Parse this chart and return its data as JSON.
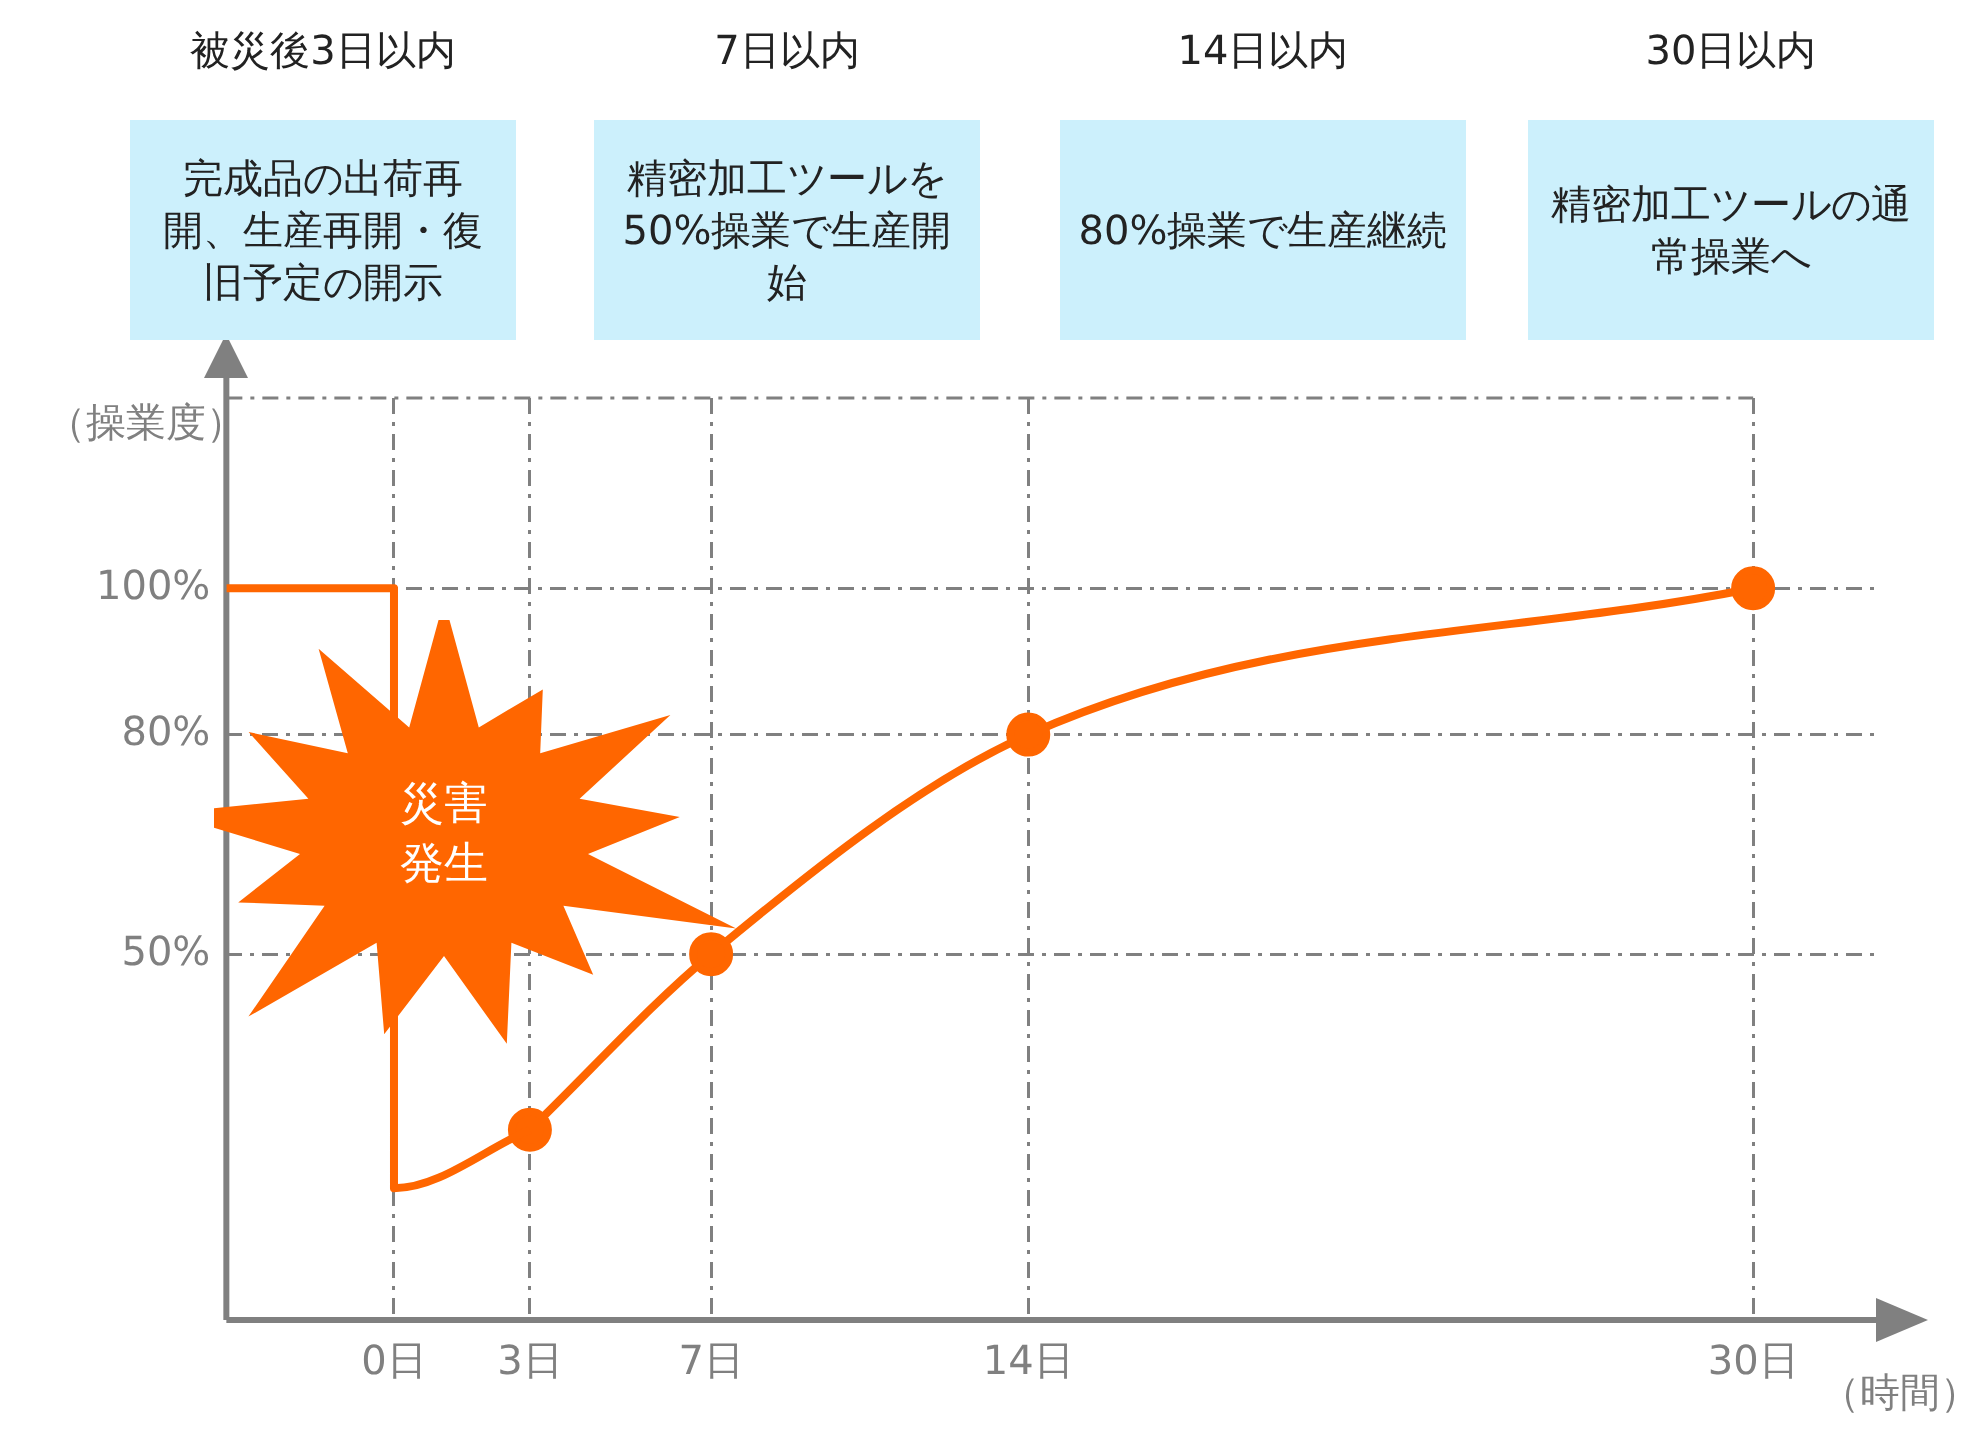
{
  "chart_data": {
    "type": "line",
    "xlabel": "（時間）",
    "ylabel": "（操業度）",
    "annotations": [
      "被災後3日以内",
      "7日以内",
      "14日以内",
      "30日以内",
      "完成品の出荷再開、生産再開・復旧予定の開示",
      "精密加工ツールを50%操業で生産開始",
      "80%操業で生産継続",
      "精密加工ツールの通常操業へ",
      "災害発生"
    ],
    "series": [
      {
        "color": "#ff6600",
        "marker": "none",
        "x": [
          -3.7,
          0,
          0,
          3
        ],
        "values": [
          100,
          100,
          18,
          26
        ]
      },
      {
        "color": "#ff6600",
        "marker": "circle",
        "x": [
          3,
          7,
          14,
          30
        ],
        "values": [
          26,
          50,
          80,
          100
        ]
      }
    ],
    "xlim": [
      -3.7,
      32.8
    ],
    "ylim": [
      0,
      126
    ],
    "xticks": [
      {
        "value": 0,
        "label": "0日"
      },
      {
        "value": 3,
        "label": "3日"
      },
      {
        "value": 7,
        "label": "7日"
      },
      {
        "value": 14,
        "label": "14日"
      },
      {
        "value": 30,
        "label": "30日"
      }
    ],
    "yticks": [
      {
        "value": 50,
        "label": "50%"
      },
      {
        "value": 80,
        "label": "80%"
      },
      {
        "value": 100,
        "label": "100%"
      }
    ],
    "grid": true
  }
}
